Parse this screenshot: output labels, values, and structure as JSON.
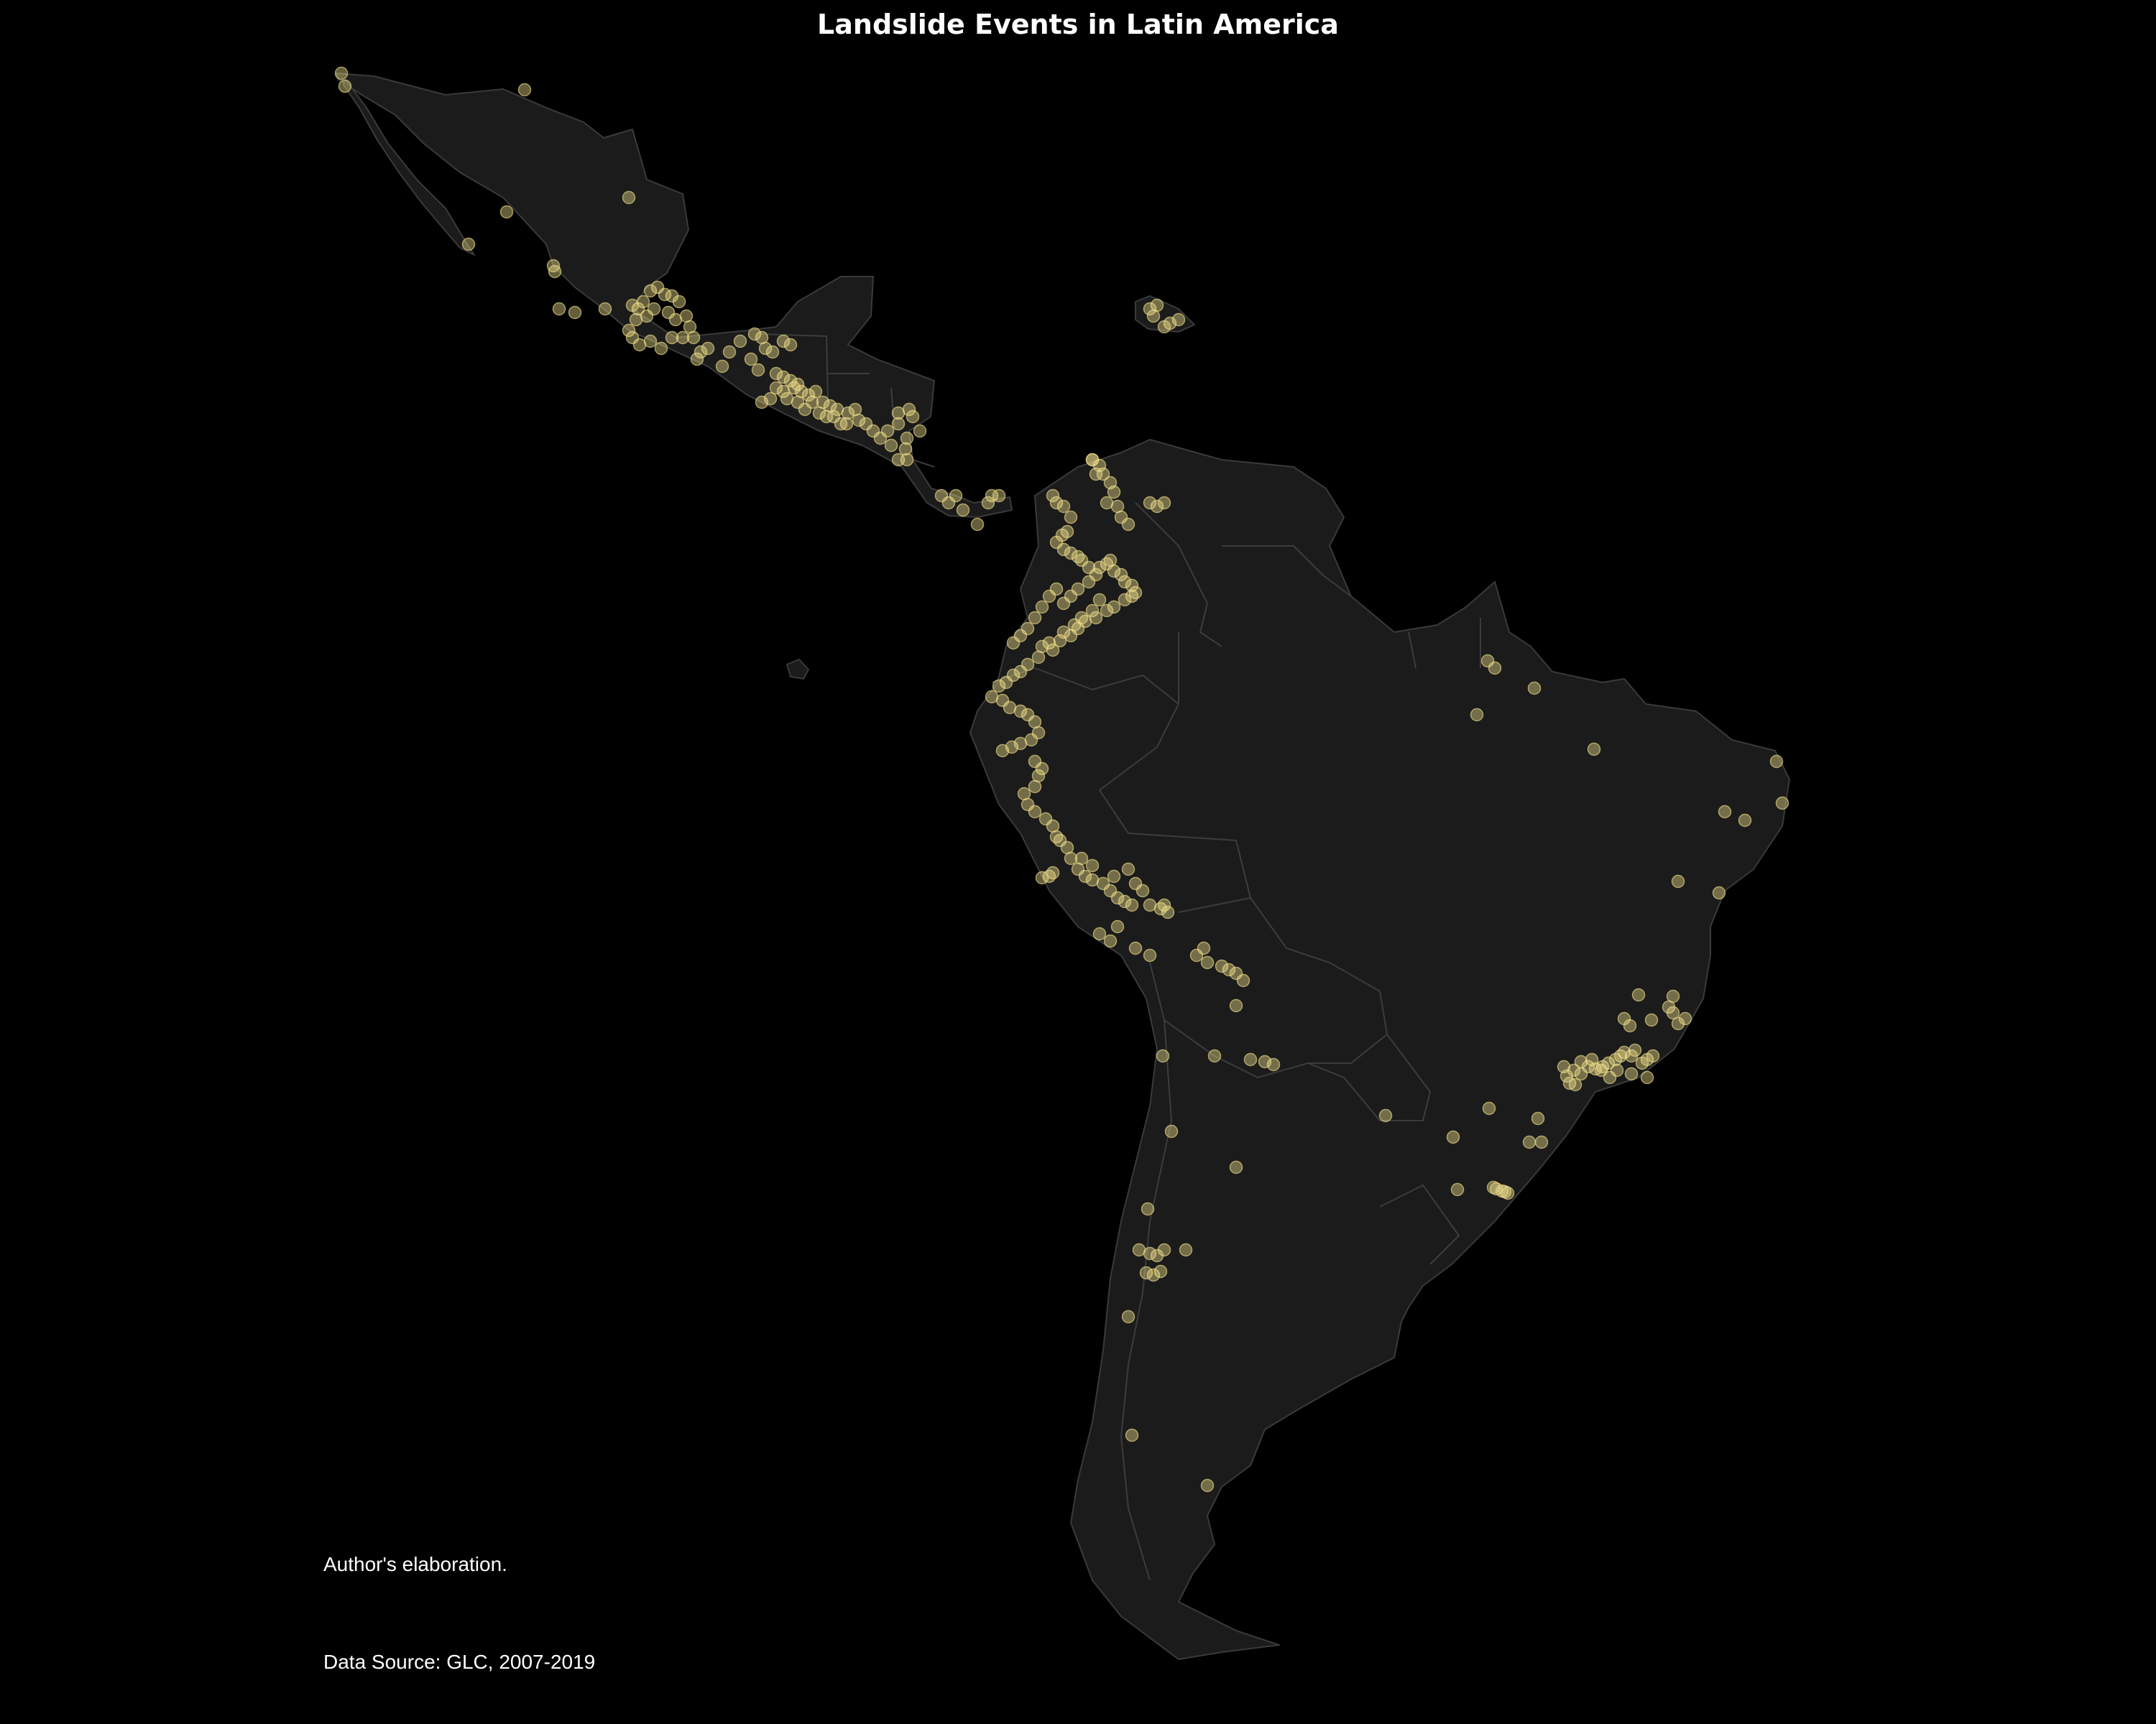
{
  "title": "Landslide Events in Latin America",
  "caption_note": "Author's elaboration.",
  "caption_source": "Data Source: GLC, 2007-2019",
  "colors": {
    "background": "#000000",
    "land": "#1b1b1b",
    "border": "#3c3c3c",
    "event": "#f0e08a"
  },
  "marker_opacity": 0.42,
  "map_data": {
    "type": "point-map",
    "region": "Latin America",
    "layer": "landslide events (points)",
    "clusters": [
      {
        "region": "northwest Mexico (Baja California)",
        "density": "low"
      },
      {
        "region": "central and southern Mexico",
        "density": "high"
      },
      {
        "region": "Guatemala / El Salvador / Honduras",
        "density": "very high"
      },
      {
        "region": "Costa Rica / Panama",
        "density": "high"
      },
      {
        "region": "Colombian Andes",
        "density": "very high"
      },
      {
        "region": "Ecuador",
        "density": "high"
      },
      {
        "region": "Peru",
        "density": "medium"
      },
      {
        "region": "Bolivia",
        "density": "low"
      },
      {
        "region": "Chile / Argentina",
        "density": "low"
      },
      {
        "region": "southeastern Brazil (Rio de Janeiro / São Paulo)",
        "density": "very high"
      },
      {
        "region": "northeastern Brazil",
        "density": "low"
      },
      {
        "region": "Puerto Rico",
        "density": "medium"
      },
      {
        "region": "Venezuela (Caracas)",
        "density": "medium"
      }
    ]
  }
}
